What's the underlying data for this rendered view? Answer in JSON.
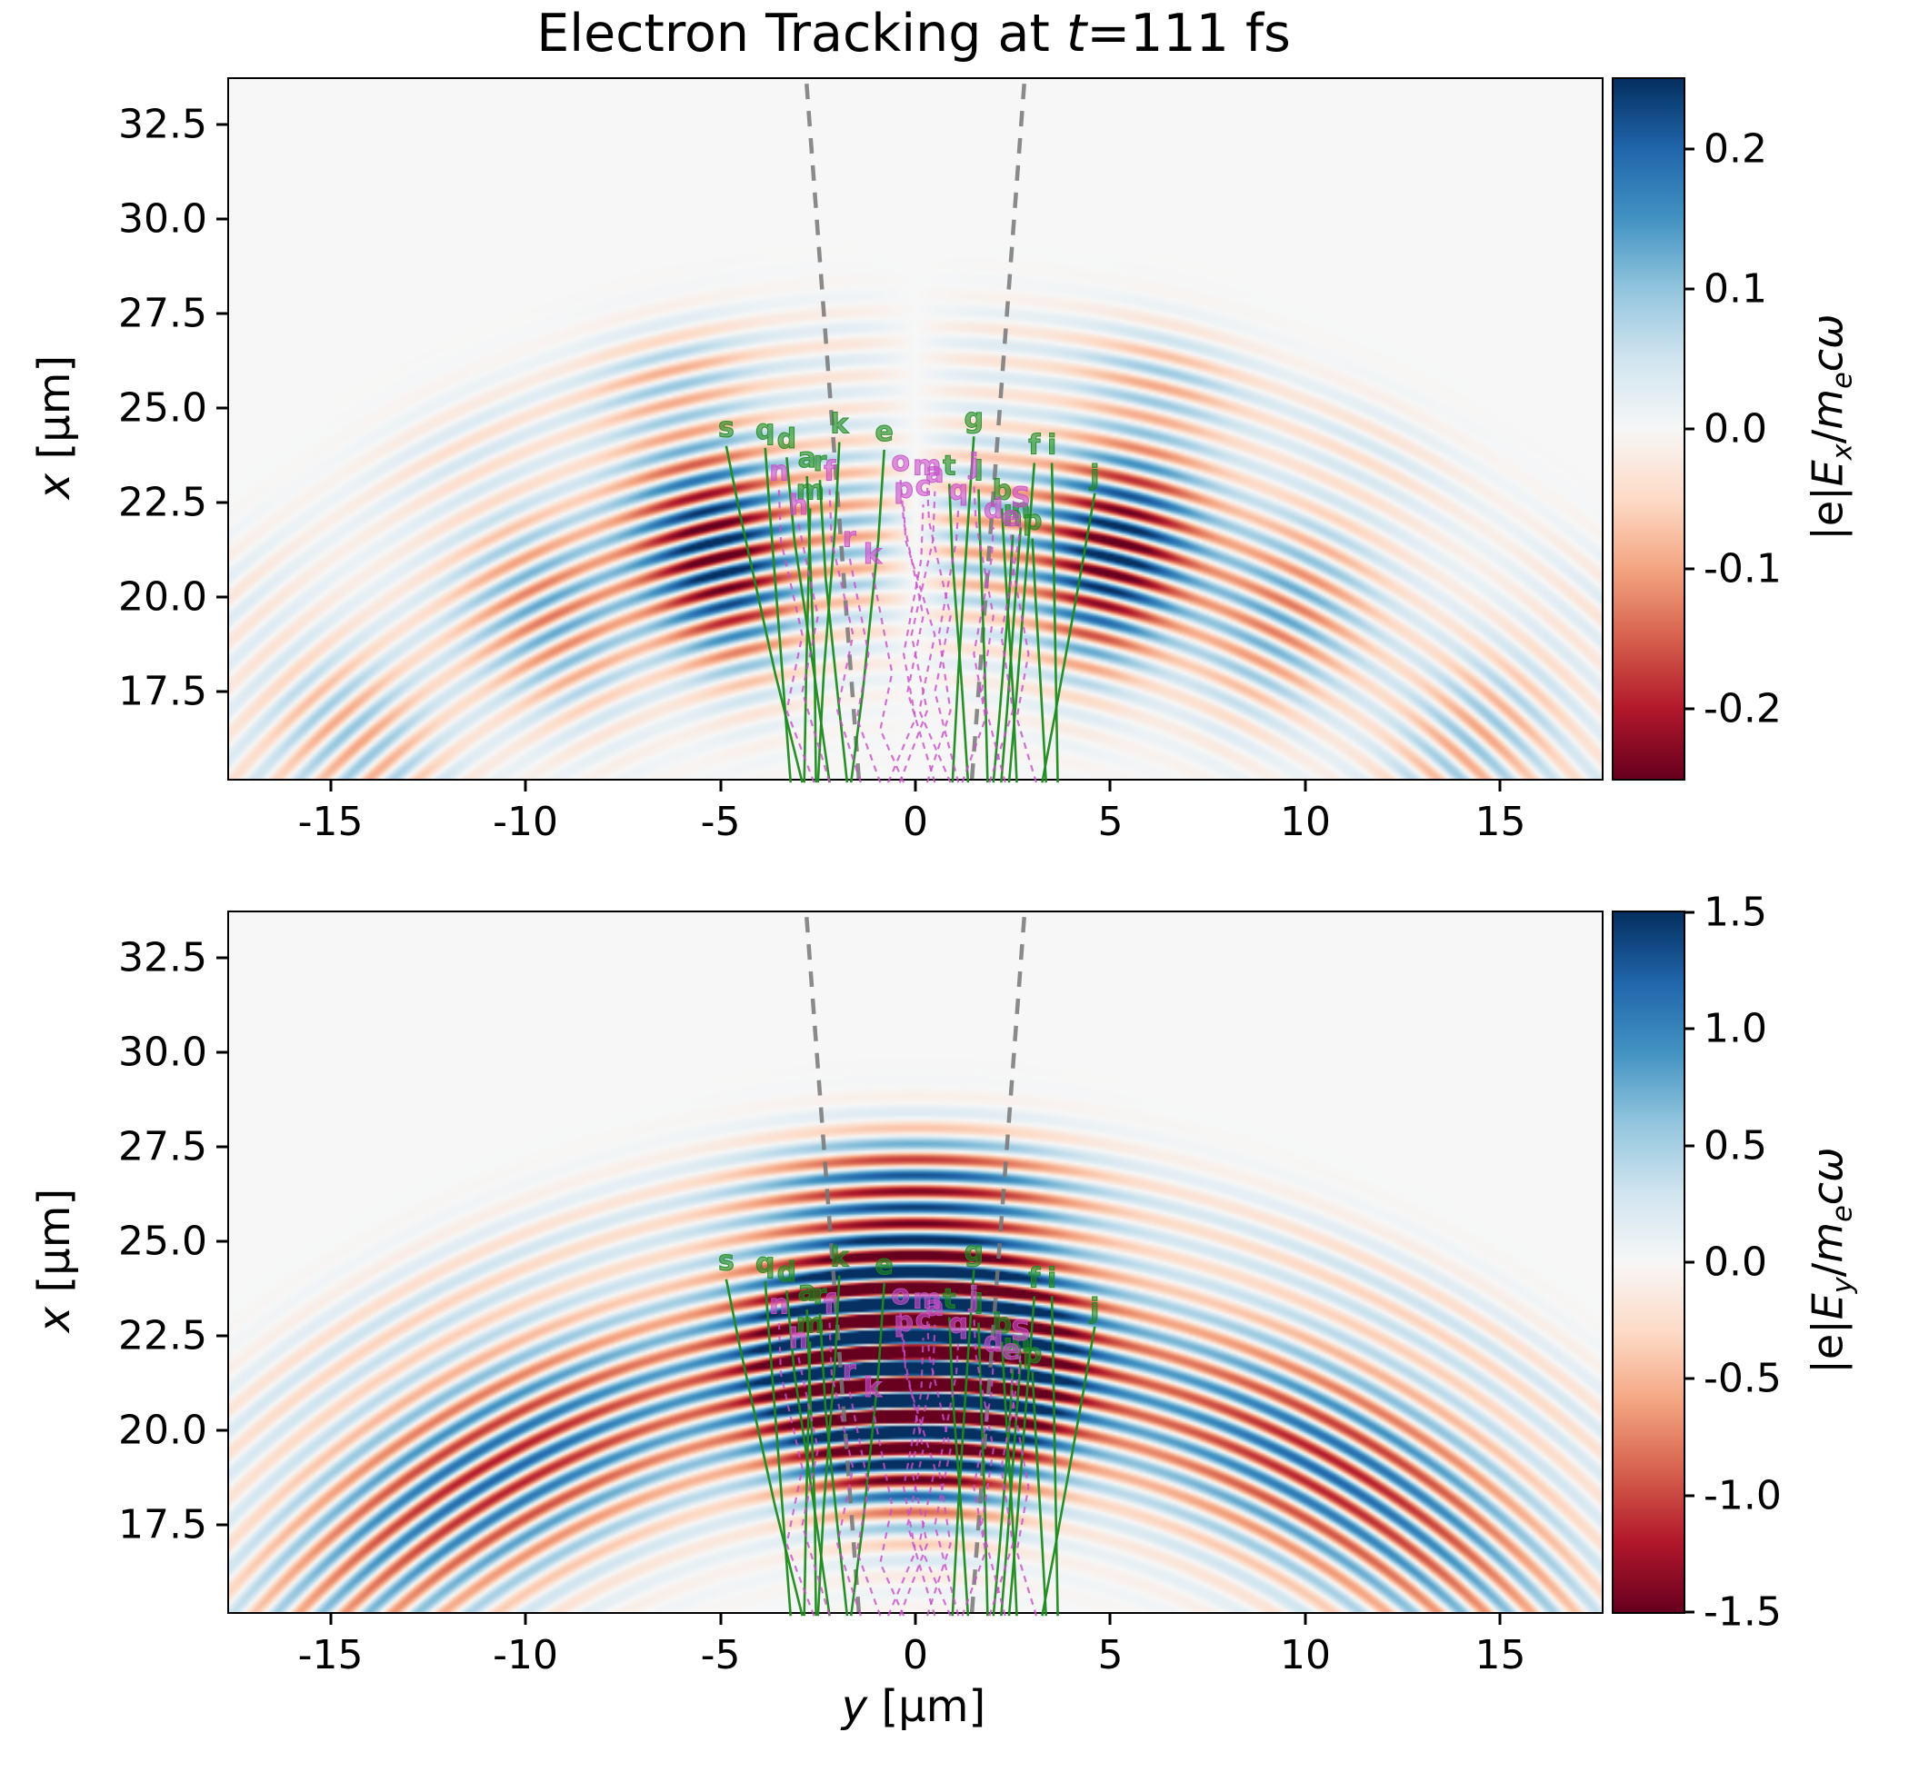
{
  "figure": {
    "background": "#ffffff",
    "title": {
      "pre": "Electron Tracking at ",
      "var": "t",
      "post": "=111 fs"
    }
  },
  "axes": {
    "xlabel": {
      "var": "y",
      "unit": " [μm]"
    },
    "ylabel": {
      "var": "x",
      "unit": " [μm]"
    }
  },
  "chart_data": {
    "type": "heatmap",
    "title": "Electron Tracking at t=111 fs",
    "x_axis": {
      "label": "y [μm]",
      "range": [
        -17.6,
        17.6
      ],
      "ticks": [
        "-15",
        "-10",
        "-5",
        "0",
        "5",
        "10",
        "15"
      ]
    },
    "y_axis": {
      "label": "x [μm]",
      "range": [
        15.2,
        33.7
      ],
      "ticks": [
        "32.5",
        "30.0",
        "27.5",
        "25.0",
        "22.5",
        "20.0",
        "17.5"
      ]
    },
    "grid": false,
    "colormap": {
      "name": "RdBu",
      "stops": [
        "#67001f",
        "#b2182b",
        "#d6604d",
        "#f4a582",
        "#fddbc7",
        "#f7f7f7",
        "#d1e5f0",
        "#92c5de",
        "#4393c3",
        "#2166ac",
        "#053061"
      ]
    },
    "panels": [
      {
        "field": "Ex",
        "colorbar": {
          "ticks": [
            "0.2",
            "0.1",
            "0.0",
            "-0.1",
            "-0.2"
          ],
          "vmin": -0.25,
          "vmax": 0.25,
          "label": {
            "pre": "|e|",
            "sym": "E",
            "sub": "x",
            "div": "/",
            "mass": "m",
            "mass_sub": "e",
            "tail": "cω"
          }
        },
        "model": {
          "component": "x",
          "focus": [
            0,
            0.5
          ],
          "lambda": 0.85,
          "phase": 0.54,
          "r0": 21.3,
          "rs": 3.0,
          "outer_r": 26.2,
          "outer_a": 0.25,
          "outer_s": 1.3,
          "theta_peak": 13,
          "side_a": 0.35,
          "side_th": 47,
          "side_w": 16,
          "ang_mod_period": 14,
          "ang_mod_depth": 0.45,
          "gain": 1.15
        }
      },
      {
        "field": "Ey",
        "colorbar": {
          "ticks": [
            "1.5",
            "1.0",
            "0.5",
            "0.0",
            "-0.5",
            "-1.0",
            "-1.5"
          ],
          "vmin": -1.5,
          "vmax": 1.5,
          "label": {
            "pre": "|e|",
            "sym": "E",
            "sub": "y",
            "div": "/",
            "mass": "m",
            "mass_sub": "e",
            "tail": "cω"
          }
        },
        "model": {
          "component": "y",
          "focus": [
            0,
            0.5
          ],
          "lambda": 0.85,
          "phase": 0.54,
          "r0": 21.3,
          "rs": 3.0,
          "outer_r": 26.2,
          "outer_a": 0.2,
          "outer_s": 1.3,
          "theta_peak": 9,
          "side_a": 0.25,
          "side_th": 30,
          "side_w": 20,
          "ang_mod_period": 0,
          "ang_mod_depth": 0,
          "gain": 3.2
        }
      }
    ],
    "cone": {
      "color": "#777777",
      "lines": [
        [
          [
            -1.45,
            15.2
          ],
          [
            -2.8,
            33.7
          ]
        ],
        [
          [
            1.45,
            15.2
          ],
          [
            2.8,
            33.7
          ]
        ]
      ]
    },
    "trajectories": {
      "tracked": {
        "color": "#1e8a1e",
        "style": "solid",
        "items": [
          {
            "id": "s",
            "pts": [
              [
                -2.9,
                15.1
              ],
              [
                -3.6,
                18.0
              ],
              [
                -4.5,
                22.2
              ],
              [
                -4.85,
                24.0
              ]
            ]
          },
          {
            "id": "q",
            "pts": [
              [
                -3.2,
                15.1
              ],
              [
                -3.45,
                18.5
              ],
              [
                -3.75,
                22.5
              ],
              [
                -3.85,
                23.95
              ]
            ]
          },
          {
            "id": "d",
            "pts": [
              [
                -2.2,
                15.1
              ],
              [
                -2.6,
                18.0
              ],
              [
                -3.1,
                21.5
              ],
              [
                -3.3,
                23.7
              ]
            ]
          },
          {
            "id": "a",
            "pts": [
              [
                -2.55,
                15.1
              ],
              [
                -2.58,
                18.0
              ],
              [
                -2.7,
                21.0
              ],
              [
                -2.78,
                23.2
              ]
            ]
          },
          {
            "id": "r",
            "pts": [
              [
                -1.75,
                15.1
              ],
              [
                -2.0,
                17.5
              ],
              [
                -2.3,
                20.5
              ],
              [
                -2.45,
                23.1
              ]
            ]
          },
          {
            "id": "k",
            "pts": [
              [
                -2.5,
                15.1
              ],
              [
                -2.35,
                18.0
              ],
              [
                -2.05,
                22.0
              ],
              [
                -1.95,
                24.1
              ]
            ]
          },
          {
            "id": "e",
            "pts": [
              [
                -1.65,
                15.1
              ],
              [
                -1.35,
                17.5
              ],
              [
                -0.95,
                21.5
              ],
              [
                -0.8,
                23.9
              ]
            ]
          },
          {
            "id": "m",
            "pts": [
              [
                -2.85,
                15.1
              ],
              [
                -2.8,
                18.0
              ],
              [
                -2.73,
                21.0
              ],
              [
                -2.7,
                22.35
              ]
            ]
          },
          {
            "id": "g",
            "pts": [
              [
                0.95,
                15.1
              ],
              [
                1.1,
                18.0
              ],
              [
                1.35,
                22.0
              ],
              [
                1.5,
                24.25
              ]
            ]
          },
          {
            "id": "t",
            "pts": [
              [
                1.35,
                15.1
              ],
              [
                1.2,
                17.5
              ],
              [
                0.95,
                21.0
              ],
              [
                0.87,
                23.0
              ]
            ]
          },
          {
            "id": "l",
            "pts": [
              [
                1.85,
                15.1
              ],
              [
                1.78,
                18.0
              ],
              [
                1.66,
                21.5
              ],
              [
                1.62,
                22.85
              ]
            ]
          },
          {
            "id": "b",
            "pts": [
              [
                2.6,
                15.1
              ],
              [
                2.5,
                17.5
              ],
              [
                2.3,
                20.8
              ],
              [
                2.22,
                22.35
              ]
            ]
          },
          {
            "id": "n",
            "pts": [
              [
                2.2,
                15.1
              ],
              [
                2.35,
                17.0
              ],
              [
                2.6,
                20.5
              ],
              [
                2.7,
                21.85
              ]
            ]
          },
          {
            "id": "p",
            "pts": [
              [
                3.35,
                15.1
              ],
              [
                3.25,
                17.0
              ],
              [
                3.08,
                20.0
              ],
              [
                3.0,
                21.55
              ]
            ]
          },
          {
            "id": "f",
            "pts": [
              [
                2.4,
                15.1
              ],
              [
                2.6,
                17.5
              ],
              [
                2.9,
                21.5
              ],
              [
                3.05,
                23.55
              ]
            ]
          },
          {
            "id": "i",
            "pts": [
              [
                3.65,
                15.1
              ],
              [
                3.6,
                18.0
              ],
              [
                3.53,
                22.0
              ],
              [
                3.5,
                23.55
              ]
            ]
          },
          {
            "id": "j",
            "pts": [
              [
                3.25,
                15.1
              ],
              [
                3.6,
                17.0
              ],
              [
                4.3,
                21.0
              ],
              [
                4.6,
                22.75
              ]
            ]
          },
          {
            "id": "h",
            "pts": [
              [
                2.0,
                15.1
              ],
              [
                2.15,
                16.8
              ],
              [
                2.4,
                20.0
              ],
              [
                2.5,
                21.65
              ]
            ]
          }
        ]
      },
      "reference": {
        "color": "#c94fc9",
        "style": "dashed",
        "items": [
          {
            "id": "n",
            "pts": [
              [
                -2.6,
                15.1
              ],
              [
                -3.3,
                17.0
              ],
              [
                -2.9,
                19.0
              ],
              [
                -3.45,
                21.5
              ],
              [
                -3.5,
                22.85
              ]
            ]
          },
          {
            "id": "h",
            "pts": [
              [
                -2.2,
                15.1
              ],
              [
                -2.9,
                17.5
              ],
              [
                -2.5,
                19.5
              ],
              [
                -3.0,
                21.95
              ]
            ]
          },
          {
            "id": "f",
            "pts": [
              [
                -1.4,
                15.1
              ],
              [
                -2.0,
                17.0
              ],
              [
                -1.6,
                19.0
              ],
              [
                -2.15,
                21.5
              ],
              [
                -2.2,
                22.85
              ]
            ]
          },
          {
            "id": "r",
            "pts": [
              [
                -0.9,
                15.1
              ],
              [
                -1.5,
                16.8
              ],
              [
                -1.2,
                18.5
              ],
              [
                -1.7,
                21.1
              ]
            ]
          },
          {
            "id": "k",
            "pts": [
              [
                -0.3,
                15.1
              ],
              [
                -0.9,
                16.5
              ],
              [
                -0.6,
                18.0
              ],
              [
                -1.1,
                20.65
              ]
            ]
          },
          {
            "id": "o",
            "pts": [
              [
                0.5,
                15.1
              ],
              [
                -0.2,
                17.5
              ],
              [
                0.2,
                19.5
              ],
              [
                -0.3,
                22.0
              ],
              [
                -0.38,
                23.1
              ]
            ]
          },
          {
            "id": "p",
            "pts": [
              [
                0.9,
                15.1
              ],
              [
                0.1,
                17.0
              ],
              [
                0.5,
                19.0
              ],
              [
                -0.25,
                21.5
              ],
              [
                -0.3,
                22.4
              ]
            ]
          },
          {
            "id": "m",
            "pts": [
              [
                1.1,
                15.1
              ],
              [
                0.5,
                17.5
              ],
              [
                0.9,
                19.5
              ],
              [
                0.35,
                22.0
              ],
              [
                0.3,
                23.0
              ]
            ]
          },
          {
            "id": "a",
            "pts": [
              [
                -0.4,
                15.1
              ],
              [
                0.3,
                17.0
              ],
              [
                -0.1,
                19.0
              ],
              [
                0.45,
                21.5
              ],
              [
                0.5,
                22.8
              ]
            ]
          },
          {
            "id": "c",
            "pts": [
              [
                -0.7,
                15.1
              ],
              [
                0.0,
                16.8
              ],
              [
                -0.3,
                18.5
              ],
              [
                0.15,
                21.0
              ],
              [
                0.2,
                22.45
              ]
            ]
          },
          {
            "id": "q",
            "pts": [
              [
                0.3,
                15.1
              ],
              [
                0.9,
                17.0
              ],
              [
                0.6,
                19.0
              ],
              [
                1.05,
                21.5
              ],
              [
                1.1,
                22.35
              ]
            ]
          },
          {
            "id": "j",
            "pts": [
              [
                2.3,
                15.1
              ],
              [
                1.7,
                17.5
              ],
              [
                2.0,
                19.5
              ],
              [
                1.55,
                22.0
              ],
              [
                1.5,
                23.05
              ]
            ]
          },
          {
            "id": "d",
            "pts": [
              [
                1.2,
                15.1
              ],
              [
                1.8,
                16.8
              ],
              [
                1.5,
                18.5
              ],
              [
                1.95,
                21.0
              ],
              [
                2.0,
                21.85
              ]
            ]
          },
          {
            "id": "S",
            "pts": [
              [
                1.9,
                15.1
              ],
              [
                2.5,
                17.0
              ],
              [
                2.2,
                19.0
              ],
              [
                2.65,
                21.5
              ],
              [
                2.7,
                22.15
              ]
            ]
          },
          {
            "id": "e",
            "pts": [
              [
                3.1,
                15.1
              ],
              [
                2.6,
                16.8
              ],
              [
                2.9,
                18.5
              ],
              [
                2.5,
                20.8
              ],
              [
                2.45,
                21.65
              ]
            ]
          }
        ]
      }
    }
  }
}
